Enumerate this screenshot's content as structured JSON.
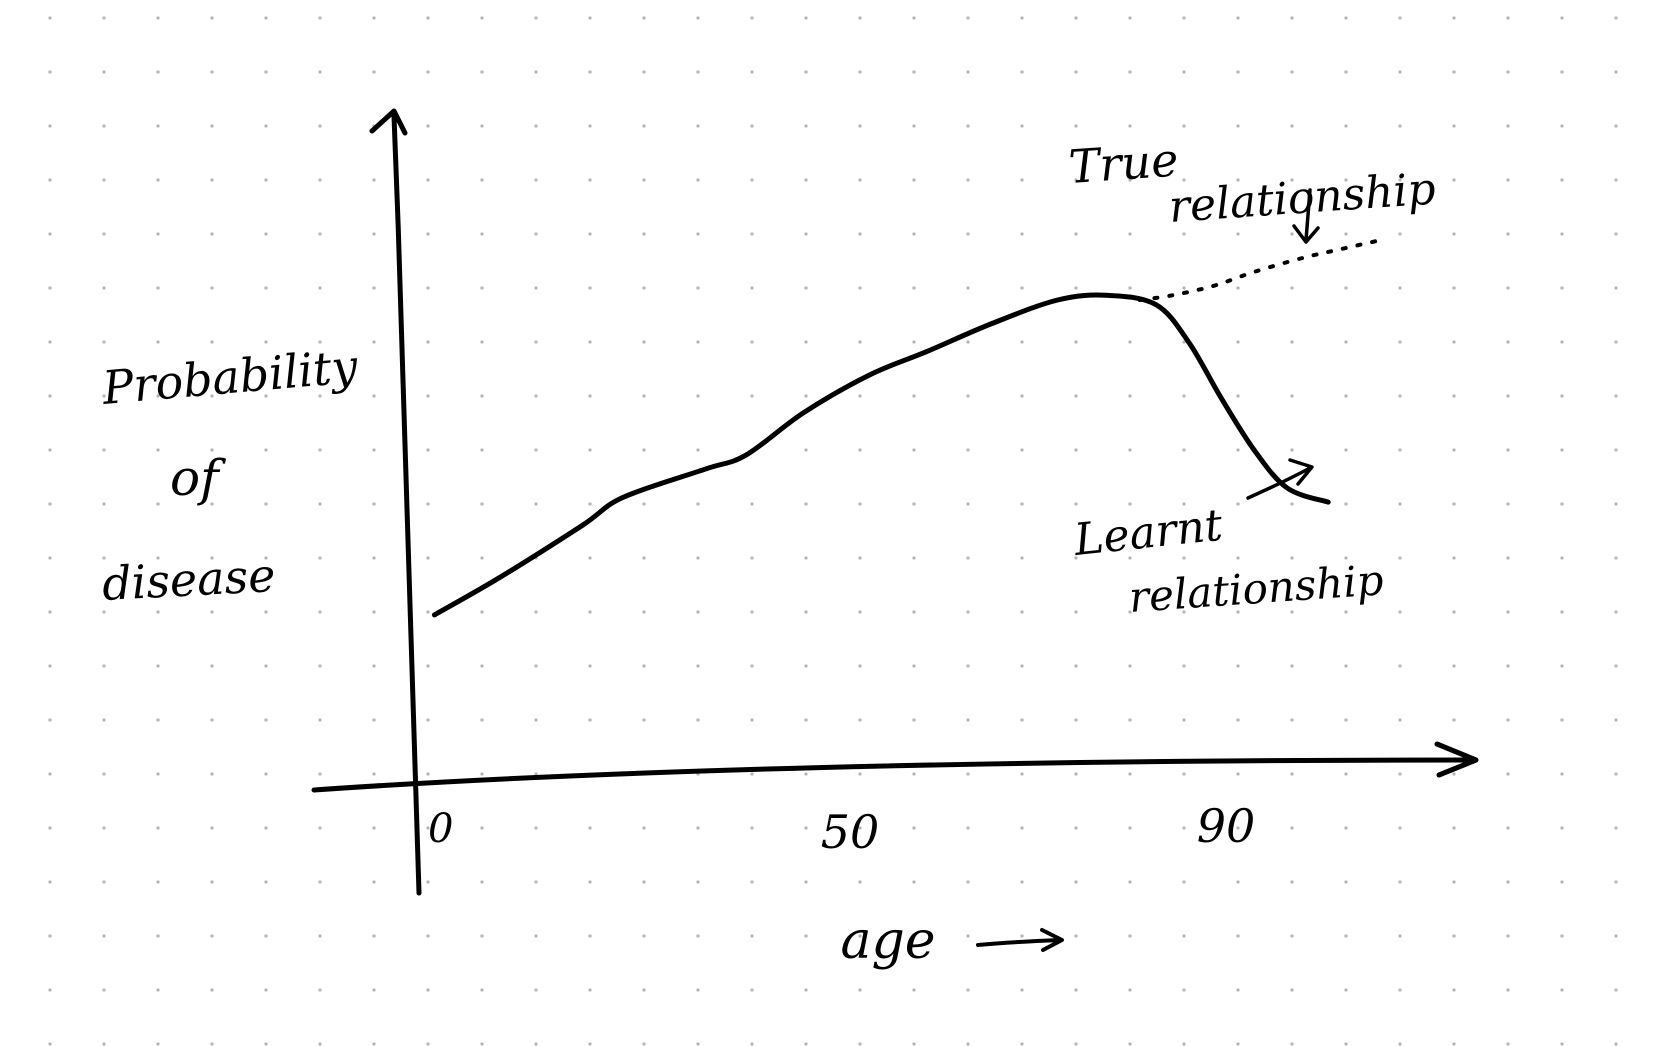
{
  "colors": {
    "background": "#ffffff",
    "ink": "#000000",
    "dot_grid": "#b4b4b4"
  },
  "chart_data": {
    "type": "line",
    "title": "",
    "xlabel": "age",
    "ylabel_lines": [
      "Probability",
      "of",
      "disease"
    ],
    "x_ticks": [
      "0",
      "50",
      "90"
    ],
    "grid": "dotted",
    "series": [
      {
        "name": "Learnt relationship",
        "style": "solid",
        "x": [
          2,
          10,
          20,
          25,
          35,
          40,
          47,
          55,
          62,
          70,
          78,
          84,
          90,
          94,
          98,
          102,
          106,
          111
        ],
        "y": [
          0.33,
          0.41,
          0.52,
          0.58,
          0.64,
          0.67,
          0.76,
          0.84,
          0.89,
          0.95,
          1.0,
          1.01,
          0.99,
          0.91,
          0.79,
          0.68,
          0.6,
          0.57
        ]
      },
      {
        "name": "True relationship",
        "style": "dotted",
        "x": [
          88,
          92,
          97,
          102,
          108,
          113,
          118
        ],
        "y": [
          1.0,
          1.01,
          1.03,
          1.06,
          1.09,
          1.11,
          1.13
        ]
      }
    ],
    "annotations": [
      {
        "text_lines": [
          "True",
          "relationship"
        ],
        "points_to": "True relationship"
      },
      {
        "text_lines": [
          "Learnt",
          "relationship"
        ],
        "points_to": "Learnt relationship"
      }
    ]
  }
}
